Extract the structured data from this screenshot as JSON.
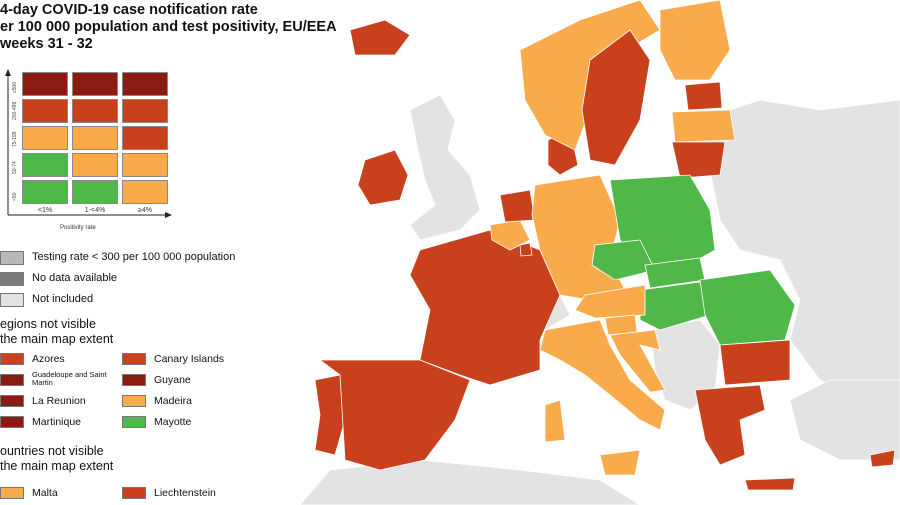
{
  "title": {
    "line1": "4-day COVID-19 case notification rate",
    "line2": "er 100 000 population and test positivity, EU/EEA",
    "line3": "weeks 31 - 32"
  },
  "colors": {
    "dark_red": "#8b1a10",
    "red": "#c8401c",
    "orange": "#f9ab4b",
    "green": "#4fb849",
    "grey_testing": "#b8b8b8",
    "grey_nodata": "#7a7a7a",
    "not_included": "#e3e3e3",
    "sea": "#ffffff"
  },
  "matrix": {
    "y_labels": [
      "≥500",
      "200-499",
      "75-199",
      "50-74",
      "<50"
    ],
    "x_labels": [
      "<1%",
      "1-<4%",
      "≥4%"
    ],
    "x_title": "Positivity rate",
    "cells": [
      [
        "dark_red",
        "dark_red",
        "dark_red"
      ],
      [
        "red",
        "red",
        "red"
      ],
      [
        "orange",
        "orange",
        "red"
      ],
      [
        "green",
        "orange",
        "orange"
      ],
      [
        "green",
        "green",
        "orange"
      ]
    ]
  },
  "legend": [
    {
      "label": "Testing rate < 300 per 100 000 population",
      "color": "grey_testing"
    },
    {
      "label": "No data available",
      "color": "grey_nodata"
    },
    {
      "label": "Not included",
      "color": "not_included"
    }
  ],
  "regions_heading": {
    "line1": "egions not visible",
    "line2": "the main map extent"
  },
  "regions": [
    {
      "label": "Azores",
      "color": "red"
    },
    {
      "label": "Canary Islands",
      "color": "red"
    },
    {
      "label": "Guadeloupe and Saint Martin",
      "color": "dark_red"
    },
    {
      "label": "Guyane",
      "color": "dark_red"
    },
    {
      "label": "La Reunion",
      "color": "dark_red"
    },
    {
      "label": "Madeira",
      "color": "orange"
    },
    {
      "label": "Martinique",
      "color": "dark_red"
    },
    {
      "label": "Mayotte",
      "color": "green"
    }
  ],
  "countries_heading": {
    "line1": "ountries not visible",
    "line2": "the main map extent"
  },
  "countries": [
    {
      "label": "Malta",
      "color": "orange"
    },
    {
      "label": "Liechtenstein",
      "color": "red"
    }
  ],
  "map_areas": [
    {
      "name": "Portugal",
      "color": "red"
    },
    {
      "name": "Spain",
      "color": "red"
    },
    {
      "name": "France",
      "color": "red"
    },
    {
      "name": "Ireland",
      "color": "red"
    },
    {
      "name": "United Kingdom",
      "color": "not_included"
    },
    {
      "name": "Belgium",
      "color": "orange"
    },
    {
      "name": "Netherlands",
      "color": "red"
    },
    {
      "name": "Luxembourg",
      "color": "red"
    },
    {
      "name": "Germany",
      "color": "orange"
    },
    {
      "name": "Switzerland",
      "color": "not_included"
    },
    {
      "name": "Italy",
      "color": "orange"
    },
    {
      "name": "Austria",
      "color": "orange"
    },
    {
      "name": "Czechia",
      "color": "green"
    },
    {
      "name": "Poland",
      "color": "green"
    },
    {
      "name": "Slovakia",
      "color": "green"
    },
    {
      "name": "Hungary",
      "color": "green"
    },
    {
      "name": "Romania",
      "color": "green"
    },
    {
      "name": "Slovenia",
      "color": "orange"
    },
    {
      "name": "Croatia",
      "color": "orange"
    },
    {
      "name": "Bulgaria",
      "color": "red"
    },
    {
      "name": "Greece",
      "color": "red"
    },
    {
      "name": "Cyprus",
      "color": "red"
    },
    {
      "name": "Denmark",
      "color": "red"
    },
    {
      "name": "Norway",
      "color": "orange"
    },
    {
      "name": "Sweden",
      "color": "red"
    },
    {
      "name": "Finland",
      "color": "orange"
    },
    {
      "name": "Estonia",
      "color": "red"
    },
    {
      "name": "Latvia",
      "color": "orange"
    },
    {
      "name": "Lithuania",
      "color": "red"
    },
    {
      "name": "Iceland",
      "color": "red"
    },
    {
      "name": "Non-EU Balkans",
      "color": "not_included"
    },
    {
      "name": "Eastern Europe",
      "color": "not_included"
    }
  ]
}
